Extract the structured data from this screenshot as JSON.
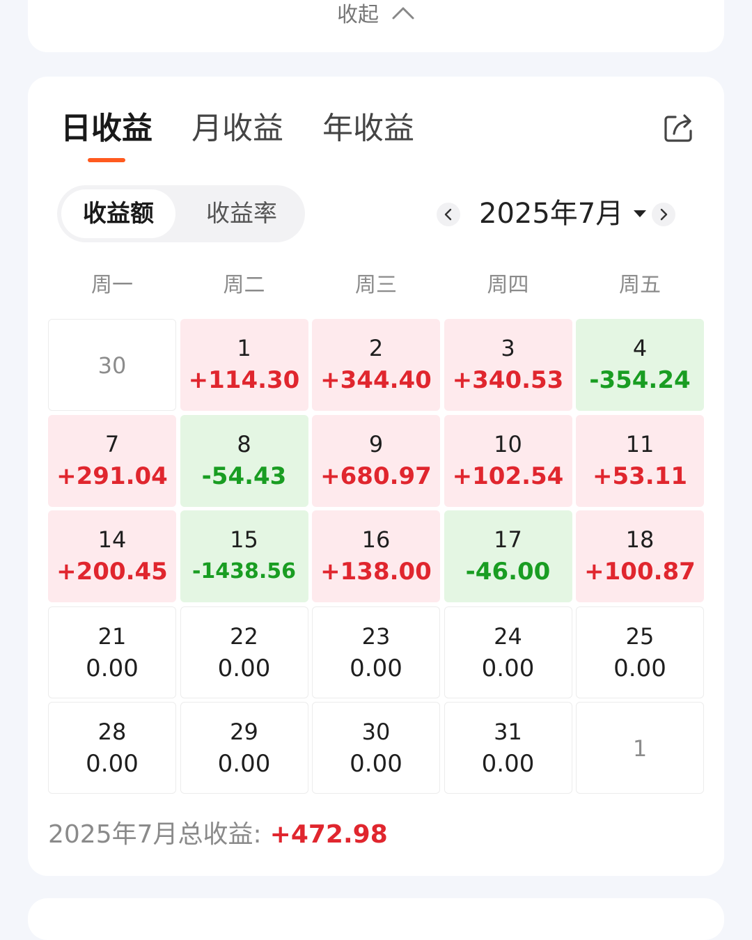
{
  "collapse": {
    "label": "收起"
  },
  "tabs": [
    {
      "label": "日收益",
      "active": true
    },
    {
      "label": "月收益",
      "active": false
    },
    {
      "label": "年收益",
      "active": false
    }
  ],
  "icons": {
    "share": "share-icon",
    "collapse": "chevron-up-icon",
    "prev": "chevron-left-icon",
    "next": "chevron-right-icon",
    "dropdown": "caret-down-icon"
  },
  "segment": {
    "active": "收益额",
    "inactive": "收益率"
  },
  "month": {
    "label": "2025年7月"
  },
  "weekdays": [
    "周一",
    "周二",
    "周三",
    "周四",
    "周五"
  ],
  "colors": {
    "accent": "#ff5a1f",
    "positive": "#e0262e",
    "negative": "#199d22",
    "positive_bg": "#feeaed",
    "negative_bg": "#e4f6e3"
  },
  "calendar": [
    [
      {
        "day": "30",
        "value": "",
        "type": "other"
      },
      {
        "day": "1",
        "value": "+114.30",
        "type": "pos"
      },
      {
        "day": "2",
        "value": "+344.40",
        "type": "pos"
      },
      {
        "day": "3",
        "value": "+340.53",
        "type": "pos"
      },
      {
        "day": "4",
        "value": "-354.24",
        "type": "neg"
      }
    ],
    [
      {
        "day": "7",
        "value": "+291.04",
        "type": "pos"
      },
      {
        "day": "8",
        "value": "-54.43",
        "type": "neg"
      },
      {
        "day": "9",
        "value": "+680.97",
        "type": "pos"
      },
      {
        "day": "10",
        "value": "+102.54",
        "type": "pos"
      },
      {
        "day": "11",
        "value": "+53.11",
        "type": "pos"
      }
    ],
    [
      {
        "day": "14",
        "value": "+200.45",
        "type": "pos"
      },
      {
        "day": "15",
        "value": "-1438.56",
        "type": "neg"
      },
      {
        "day": "16",
        "value": "+138.00",
        "type": "pos"
      },
      {
        "day": "17",
        "value": "-46.00",
        "type": "neg"
      },
      {
        "day": "18",
        "value": "+100.87",
        "type": "pos"
      }
    ],
    [
      {
        "day": "21",
        "value": "0.00",
        "type": "plain"
      },
      {
        "day": "22",
        "value": "0.00",
        "type": "plain"
      },
      {
        "day": "23",
        "value": "0.00",
        "type": "plain"
      },
      {
        "day": "24",
        "value": "0.00",
        "type": "plain"
      },
      {
        "day": "25",
        "value": "0.00",
        "type": "plain"
      }
    ],
    [
      {
        "day": "28",
        "value": "0.00",
        "type": "plain"
      },
      {
        "day": "29",
        "value": "0.00",
        "type": "plain"
      },
      {
        "day": "30",
        "value": "0.00",
        "type": "plain"
      },
      {
        "day": "31",
        "value": "0.00",
        "type": "plain"
      },
      {
        "day": "1",
        "value": "",
        "type": "other"
      }
    ]
  ],
  "total": {
    "label": "2025年7月总收益:",
    "value": "+472.98"
  }
}
